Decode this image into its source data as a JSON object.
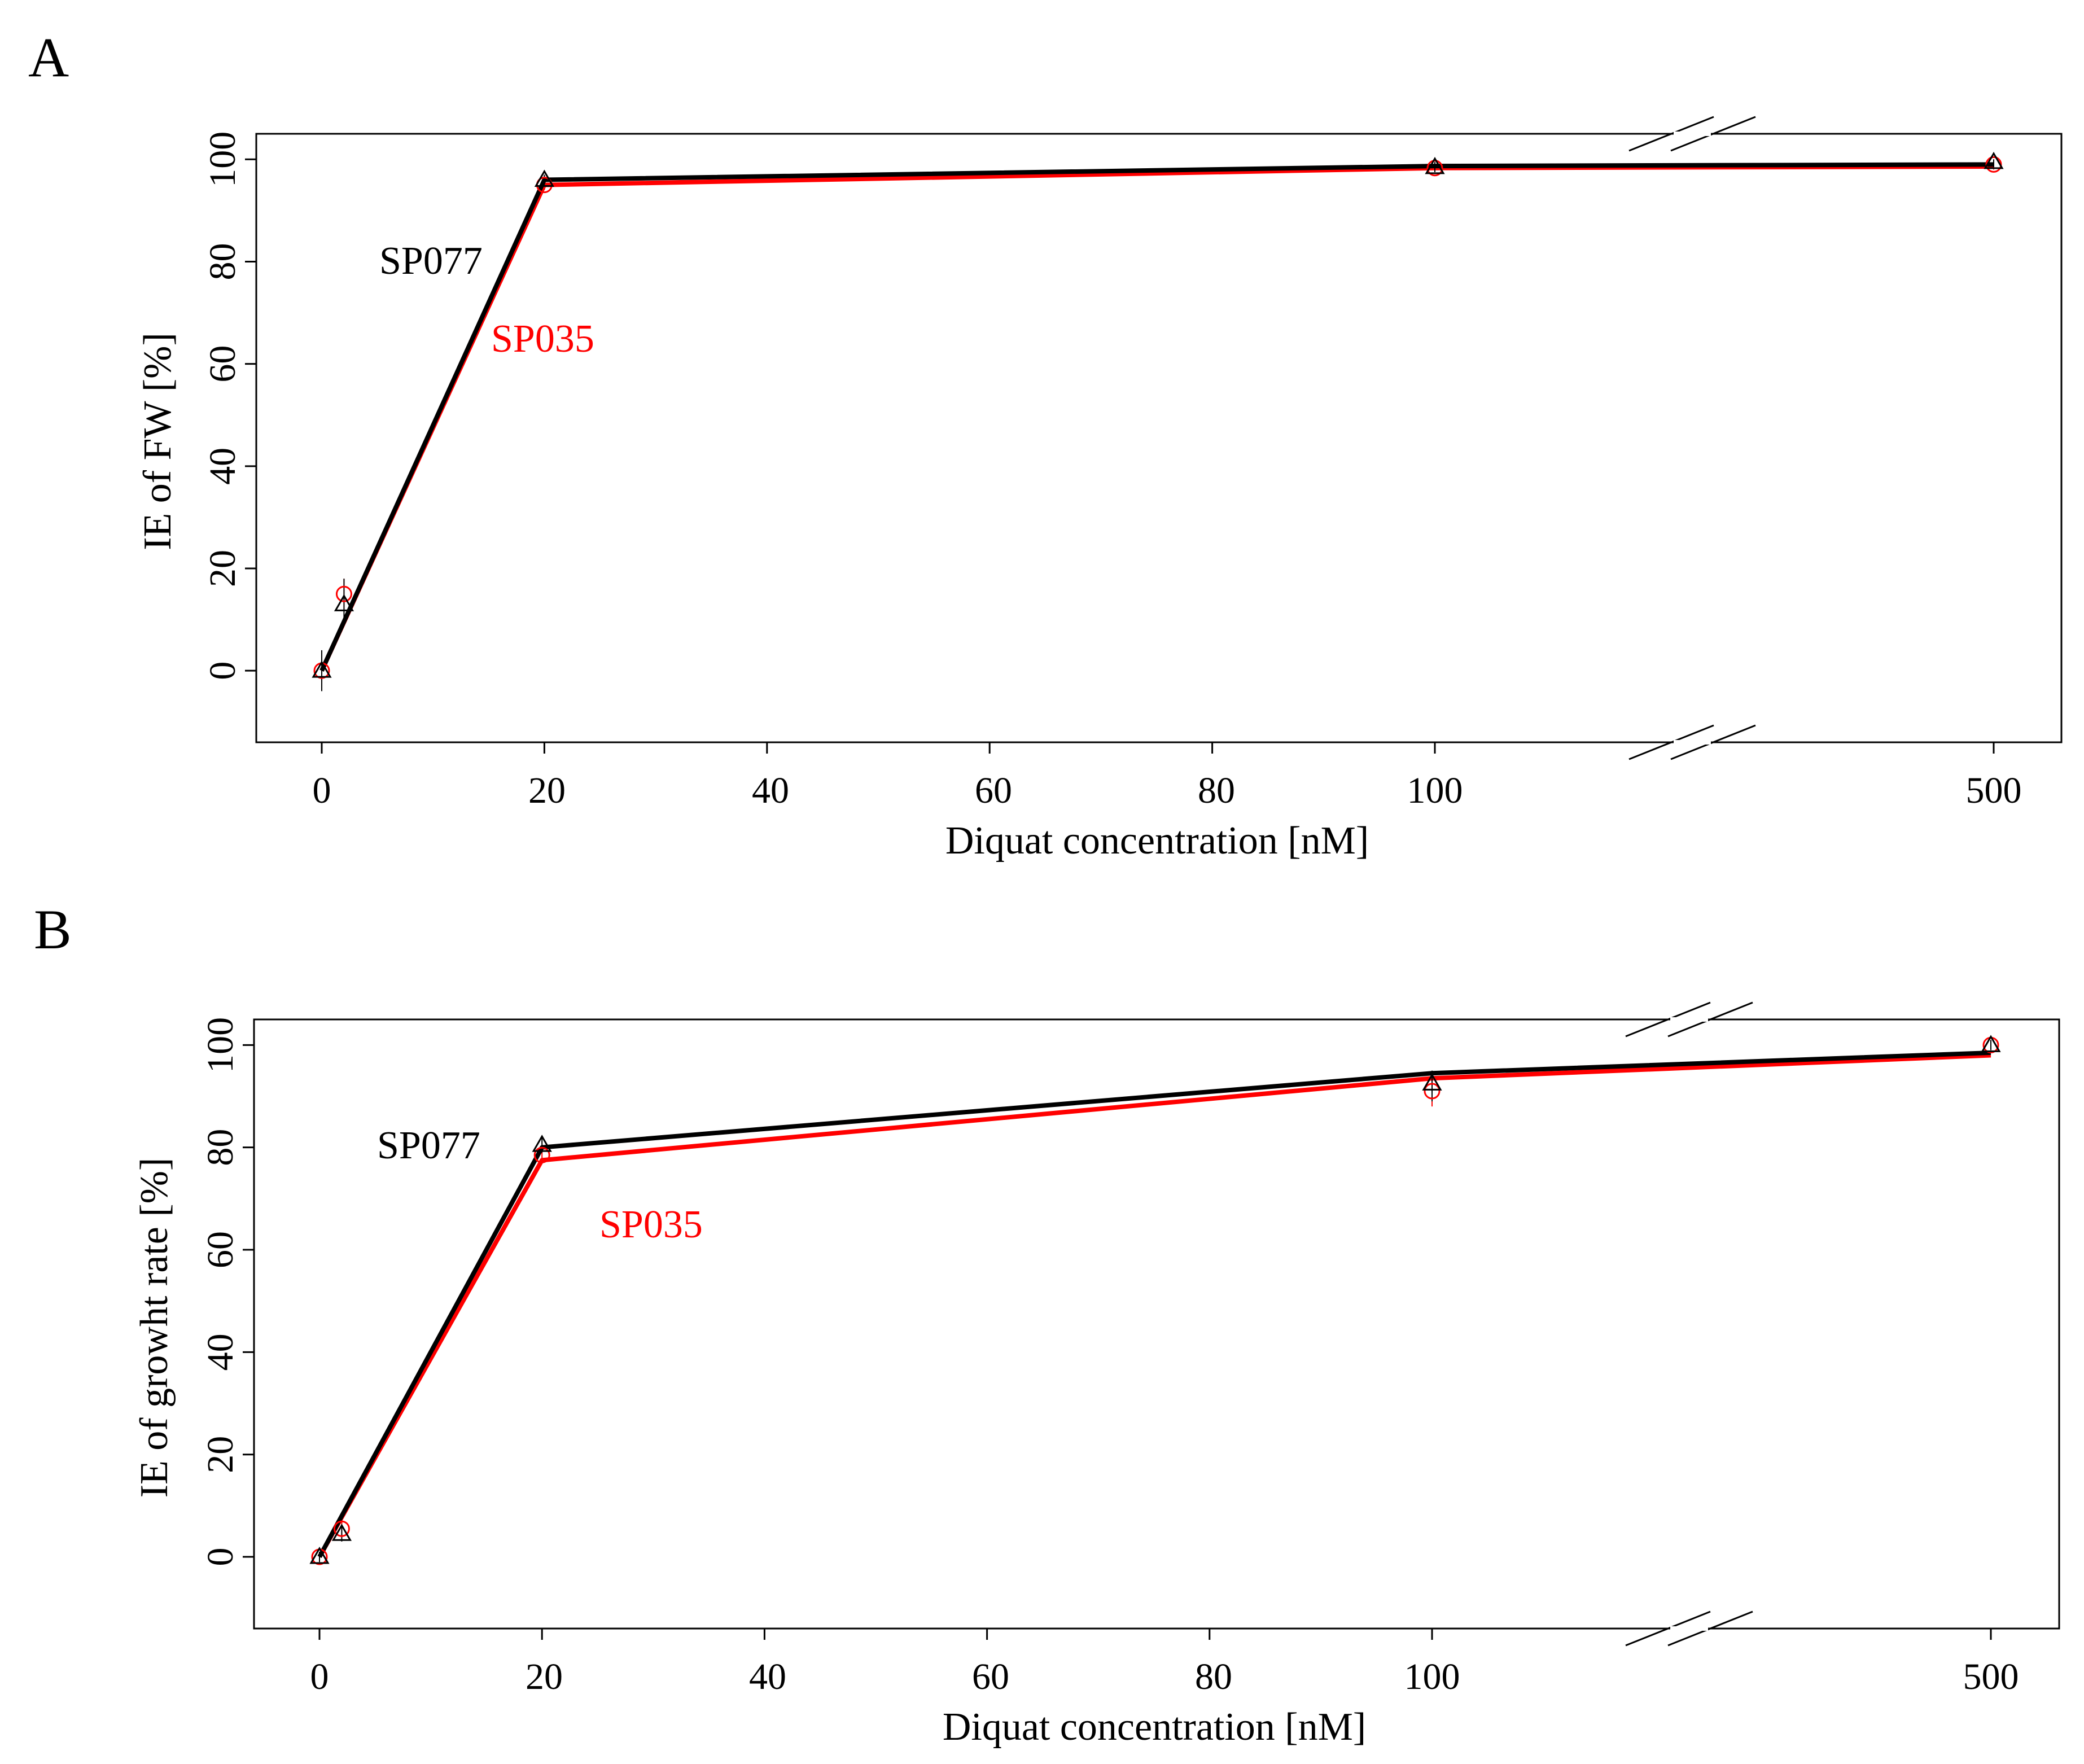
{
  "figure": {
    "panels": [
      "A",
      "B"
    ]
  },
  "chart_data": [
    {
      "panel": "A",
      "type": "line",
      "xlabel": "Diquat concentration [nM]",
      "ylabel": "IE of FW [%]",
      "x_tick_labels": [
        "0",
        "20",
        "40",
        "60",
        "80",
        "100",
        "500"
      ],
      "y_ticks": [
        0,
        20,
        40,
        60,
        80,
        100
      ],
      "ylim": [
        -14,
        105
      ],
      "x_axis_break": "between 100 and 500",
      "series": [
        {
          "name": "SP077",
          "color": "#000000",
          "marker": "triangle",
          "x": [
            0,
            2,
            20,
            100,
            500
          ],
          "y": [
            0,
            13,
            96,
            98.5,
            99.5
          ],
          "fit": [
            [
              0,
              0
            ],
            [
              20,
              96
            ],
            [
              100,
              98.7
            ],
            [
              500,
              99
            ]
          ],
          "err": [
            [
              0,
              -4,
              4
            ],
            [
              2,
              10,
              18
            ],
            [
              20,
              95,
              97
            ],
            [
              100,
              97.5,
              99.5
            ],
            [
              500,
              98.5,
              100
            ]
          ]
        },
        {
          "name": "SP035",
          "color": "#ff0000",
          "marker": "circle",
          "x": [
            0,
            2,
            20,
            100,
            500
          ],
          "y": [
            0,
            15,
            95,
            98.3,
            99
          ],
          "fit": [
            [
              0,
              0
            ],
            [
              20,
              95
            ],
            [
              100,
              98.3
            ],
            [
              500,
              98.6
            ]
          ],
          "err": [
            [
              0,
              -2,
              2
            ],
            [
              2,
              12,
              18
            ],
            [
              20,
              94,
              96
            ],
            [
              100,
              97.5,
              99
            ],
            [
              500,
              98,
              100
            ]
          ]
        }
      ]
    },
    {
      "panel": "B",
      "type": "line",
      "xlabel": "Diquat concentration [nM]",
      "ylabel": "IE of growht rate [%]",
      "x_tick_labels": [
        "0",
        "20",
        "40",
        "60",
        "80",
        "100",
        "500"
      ],
      "y_ticks": [
        0,
        20,
        40,
        60,
        80,
        100
      ],
      "ylim": [
        -14,
        105
      ],
      "x_axis_break": "between 100 and 500",
      "series": [
        {
          "name": "SP077",
          "color": "#000000",
          "marker": "triangle",
          "x": [
            0,
            2,
            20,
            100,
            500
          ],
          "y": [
            0,
            4.5,
            80.5,
            92.5,
            100
          ],
          "fit": [
            [
              0,
              0
            ],
            [
              20,
              80
            ],
            [
              100,
              94.5
            ],
            [
              500,
              98.5
            ]
          ],
          "err": [
            [
              0,
              -1,
              1
            ],
            [
              2,
              3,
              6
            ],
            [
              20,
              79,
              82
            ],
            [
              100,
              89,
              95
            ],
            [
              500,
              99,
              101
            ]
          ]
        },
        {
          "name": "SP035",
          "color": "#ff0000",
          "marker": "circle",
          "x": [
            0,
            2,
            20,
            100,
            500
          ],
          "y": [
            0,
            5.5,
            78.5,
            91,
            100
          ],
          "fit": [
            [
              0,
              0
            ],
            [
              20,
              77.5
            ],
            [
              100,
              93.5
            ],
            [
              500,
              98
            ]
          ],
          "err": [
            [
              0,
              -1,
              1
            ],
            [
              2,
              4,
              7
            ],
            [
              20,
              77,
              80
            ],
            [
              100,
              88,
              94
            ],
            [
              500,
              99,
              101
            ]
          ]
        }
      ]
    }
  ]
}
